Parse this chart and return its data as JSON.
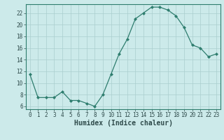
{
  "x": [
    0,
    1,
    2,
    3,
    4,
    5,
    6,
    7,
    8,
    9,
    10,
    11,
    12,
    13,
    14,
    15,
    16,
    17,
    18,
    19,
    20,
    21,
    22,
    23
  ],
  "y": [
    11.5,
    7.5,
    7.5,
    7.5,
    8.5,
    7.0,
    7.0,
    6.5,
    6.0,
    8.0,
    11.5,
    15.0,
    17.5,
    21.0,
    22.0,
    23.0,
    23.0,
    22.5,
    21.5,
    19.5,
    16.5,
    16.0,
    14.5,
    15.0
  ],
  "xlabel": "Humidex (Indice chaleur)",
  "xlim": [
    -0.5,
    23.5
  ],
  "ylim": [
    5.5,
    23.5
  ],
  "yticks": [
    6,
    8,
    10,
    12,
    14,
    16,
    18,
    20,
    22
  ],
  "xticks": [
    0,
    1,
    2,
    3,
    4,
    5,
    6,
    7,
    8,
    9,
    10,
    11,
    12,
    13,
    14,
    15,
    16,
    17,
    18,
    19,
    20,
    21,
    22,
    23
  ],
  "line_color": "#2e7d6e",
  "marker": "D",
  "marker_size": 2.0,
  "bg_color": "#cceaea",
  "grid_color": "#aacece",
  "font_color": "#2e4a4a",
  "tick_fontsize": 5.5,
  "xlabel_fontsize": 7.0
}
